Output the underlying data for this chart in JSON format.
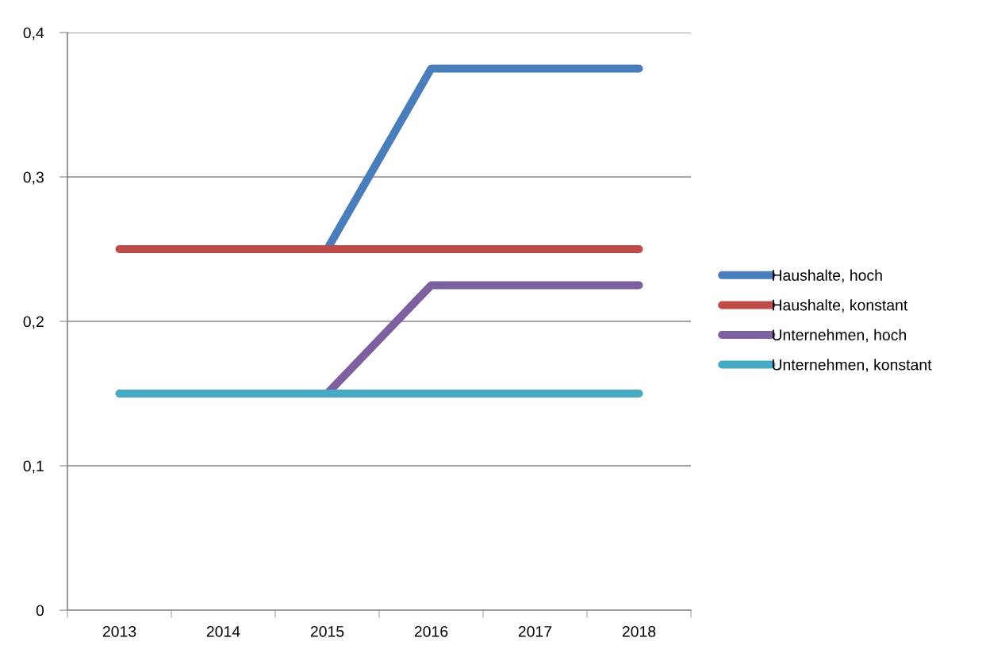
{
  "chart_data": {
    "type": "line",
    "categories": [
      "2013",
      "2014",
      "2015",
      "2016",
      "2017",
      "2018"
    ],
    "series": [
      {
        "name": "Haushalte, hoch",
        "color": "#4a7ebb",
        "values": [
          null,
          null,
          0.25,
          0.375,
          0.375,
          0.375
        ]
      },
      {
        "name": "Haushalte, konstant",
        "color": "#be4b48",
        "values": [
          0.25,
          0.25,
          0.25,
          0.25,
          0.25,
          0.25
        ]
      },
      {
        "name": "Unternehmen, hoch",
        "color": "#7d60a0",
        "values": [
          null,
          null,
          0.15,
          0.225,
          0.225,
          0.225
        ]
      },
      {
        "name": "Unternehmen, konstant",
        "color": "#46aac5",
        "values": [
          0.15,
          0.15,
          0.15,
          0.15,
          0.15,
          0.15
        ]
      }
    ],
    "ylim": [
      0,
      0.4
    ],
    "yticks": [
      0,
      {
        "value": 0.1,
        "label": "0,1"
      },
      {
        "value": 0.2,
        "label": "0,2"
      },
      {
        "value": 0.3,
        "label": "0,3"
      },
      {
        "value": 0.4,
        "label": "0,4"
      }
    ],
    "grid": "y",
    "legend": "right",
    "marker": "none",
    "line_style": "solid"
  }
}
